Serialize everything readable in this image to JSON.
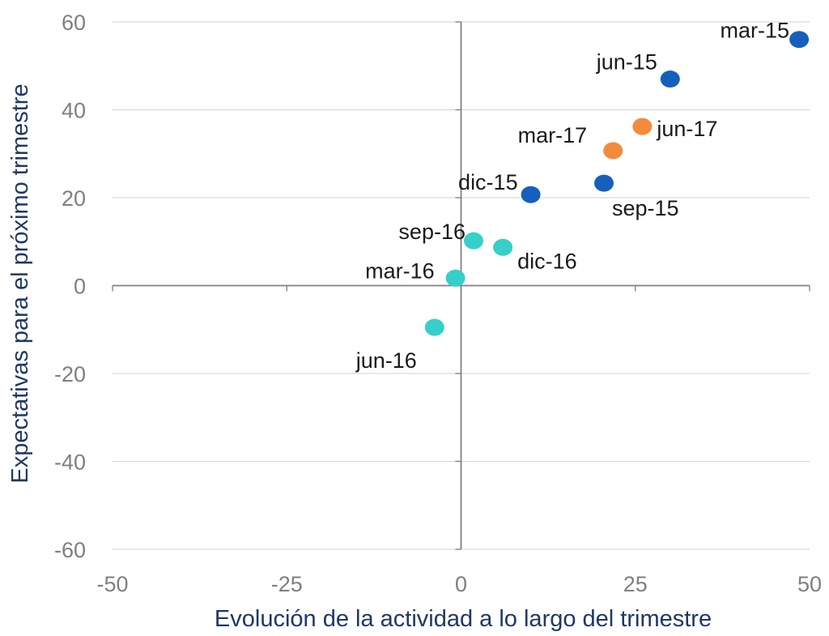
{
  "chart_data": {
    "type": "scatter",
    "title": "",
    "xlabel": "Evolución de la actividad a lo largo del trimestre",
    "ylabel": "Expectativas para el próximo trimestre",
    "xlim": [
      -50,
      50
    ],
    "ylim": [
      -60,
      60
    ],
    "x_ticks": [
      "-50",
      "-25",
      "0",
      "25",
      "50"
    ],
    "y_ticks": [
      "60",
      "40",
      "20",
      "0",
      "-20",
      "-40",
      "-60"
    ],
    "grid": "horizontal",
    "legend": "none",
    "colors": {
      "2015": "#1560bd",
      "2016": "#36cfc9",
      "2017": "#f58b3a",
      "axis": "#808080",
      "grid": "#d9d9d9"
    },
    "points": [
      {
        "label": "mar-15",
        "x": 48.5,
        "y": 56,
        "group": "2015"
      },
      {
        "label": "jun-15",
        "x": 30,
        "y": 47,
        "group": "2015"
      },
      {
        "label": "sep-15",
        "x": 20.5,
        "y": 23.3,
        "group": "2015"
      },
      {
        "label": "dic-15",
        "x": 10,
        "y": 20.7,
        "group": "2015"
      },
      {
        "label": "mar-16",
        "x": -0.8,
        "y": 1.7,
        "group": "2016"
      },
      {
        "label": "jun-16",
        "x": -3.8,
        "y": -9.5,
        "group": "2016"
      },
      {
        "label": "sep-16",
        "x": 1.8,
        "y": 10.2,
        "group": "2016"
      },
      {
        "label": "dic-16",
        "x": 6,
        "y": 8.7,
        "group": "2016"
      },
      {
        "label": "mar-17",
        "x": 21.8,
        "y": 30.7,
        "group": "2017"
      },
      {
        "label": "jun-17",
        "x": 26,
        "y": 36.2,
        "group": "2017"
      }
    ]
  }
}
